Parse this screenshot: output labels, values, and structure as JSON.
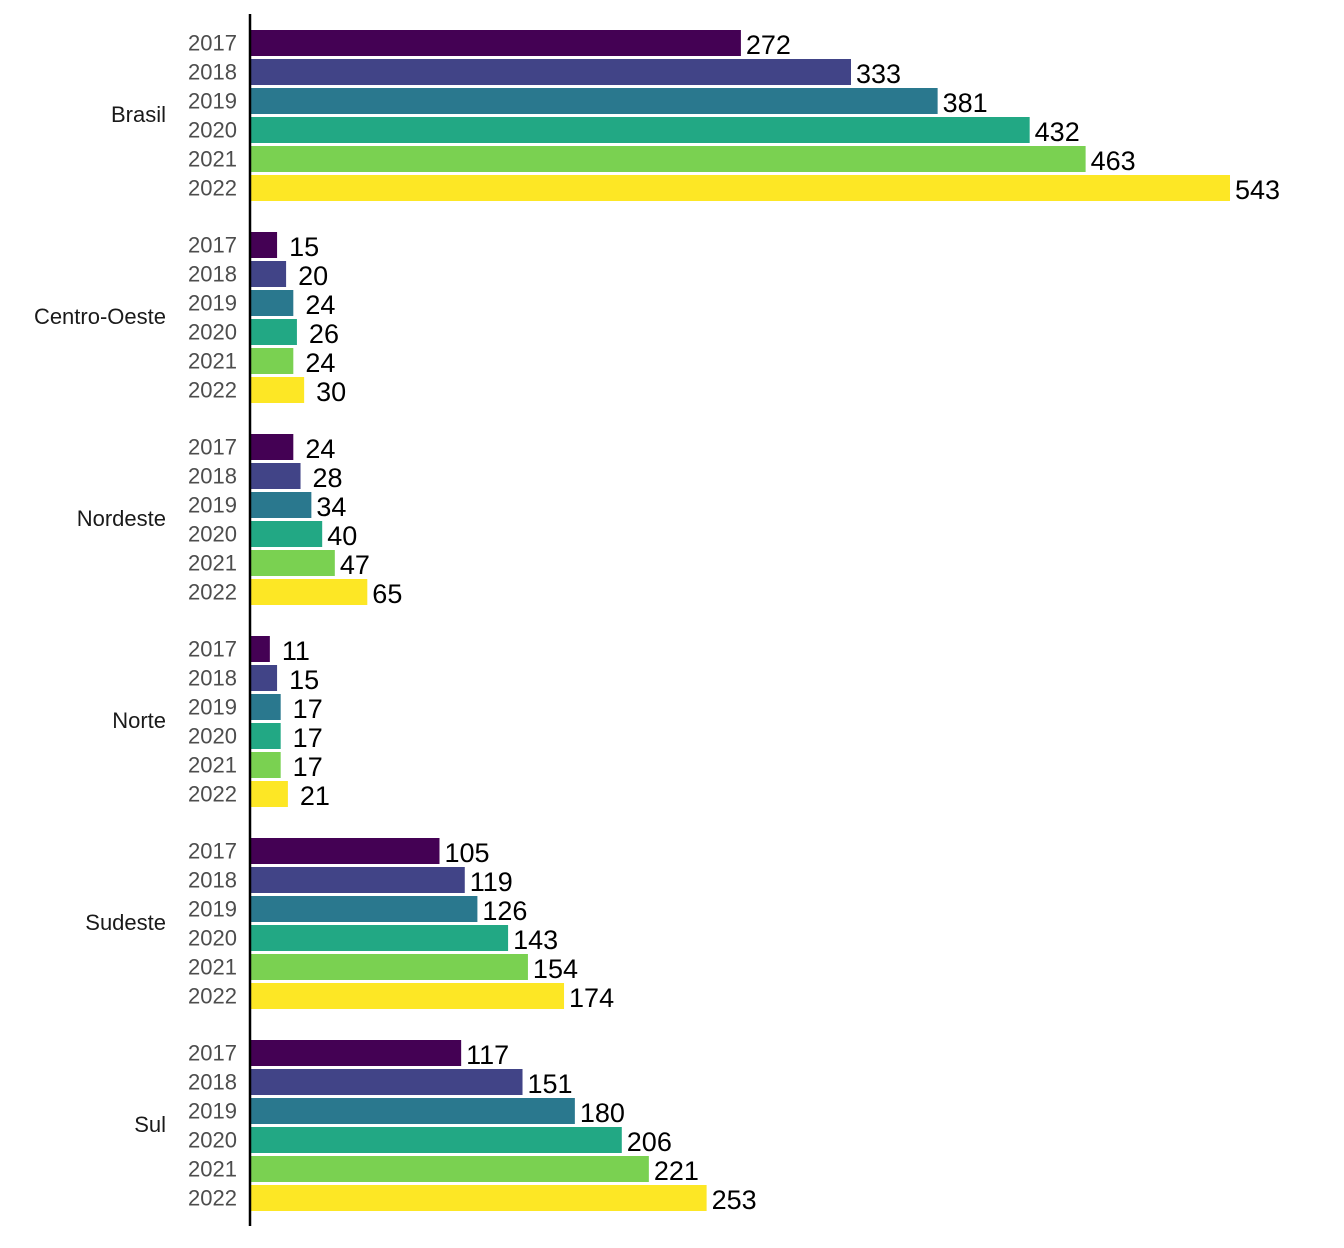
{
  "chart_data": {
    "type": "bar",
    "orientation": "horizontal",
    "title": "",
    "xlabel": "",
    "ylabel": "",
    "grid": false,
    "legend": "none",
    "xlim": [
      0,
      560
    ],
    "groups": [
      "Brasil",
      "Centro-Oeste",
      "Nordeste",
      "Norte",
      "Sudeste",
      "Sul"
    ],
    "series": [
      {
        "name": "2017",
        "color": "#440154",
        "values": [
          272,
          15,
          24,
          11,
          105,
          117
        ]
      },
      {
        "name": "2018",
        "color": "#414487",
        "values": [
          333,
          20,
          28,
          15,
          119,
          151
        ]
      },
      {
        "name": "2019",
        "color": "#2A788E",
        "values": [
          381,
          24,
          34,
          17,
          126,
          180
        ]
      },
      {
        "name": "2020",
        "color": "#22A884",
        "values": [
          432,
          26,
          40,
          17,
          143,
          206
        ]
      },
      {
        "name": "2021",
        "color": "#7AD151",
        "values": [
          463,
          24,
          47,
          17,
          154,
          221
        ]
      },
      {
        "name": "2022",
        "color": "#FDE725",
        "values": [
          543,
          30,
          65,
          21,
          174,
          253
        ]
      }
    ]
  }
}
